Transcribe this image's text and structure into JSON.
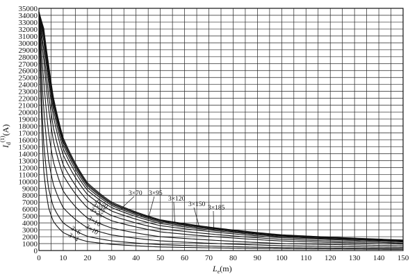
{
  "chart_data": {
    "type": "line",
    "xlabel_main": "L",
    "xlabel_sub": "e",
    "xlabel_unit": "(m)",
    "ylabel_main": "I",
    "ylabel_sub": "d",
    "ylabel_sup": "(1)",
    "ylabel_unit": "(A)",
    "xlim": [
      0,
      150
    ],
    "ylim": [
      0,
      35000
    ],
    "x_ticks": [
      0,
      10,
      20,
      30,
      40,
      50,
      60,
      70,
      80,
      90,
      100,
      110,
      120,
      130,
      140,
      150
    ],
    "y_ticks": [
      0,
      1000,
      2000,
      3000,
      4000,
      5000,
      6000,
      7000,
      8000,
      9000,
      10000,
      11000,
      12000,
      13000,
      14000,
      15000,
      16000,
      17000,
      18000,
      19000,
      20000,
      21000,
      22000,
      23000,
      24000,
      25000,
      26000,
      27000,
      28000,
      29000,
      30000,
      31000,
      32000,
      33000,
      34000,
      35000
    ],
    "grid": true,
    "series": [
      {
        "name": "3×4",
        "x": [
          0,
          2,
          4,
          6,
          10,
          20,
          30,
          50,
          100,
          150
        ],
        "y": [
          34500,
          11500,
          6200,
          4200,
          2600,
          1300,
          900,
          520,
          260,
          175
        ]
      },
      {
        "name": "3×6",
        "x": [
          0,
          2,
          4,
          6,
          10,
          20,
          30,
          50,
          100,
          150
        ],
        "y": [
          34500,
          15500,
          9000,
          6300,
          4000,
          2050,
          1400,
          850,
          430,
          290
        ]
      },
      {
        "name": "3×10",
        "x": [
          0,
          2,
          4,
          6,
          10,
          20,
          30,
          50,
          100,
          150
        ],
        "y": [
          34500,
          20500,
          13000,
          9500,
          6200,
          3300,
          2250,
          1400,
          700,
          470
        ]
      },
      {
        "name": "3×16",
        "x": [
          0,
          2,
          4,
          6,
          10,
          20,
          30,
          50,
          100,
          150
        ],
        "y": [
          34500,
          24500,
          17000,
          12800,
          8600,
          4700,
          3250,
          2000,
          1020,
          690
        ]
      },
      {
        "name": "3×25",
        "x": [
          0,
          2,
          4,
          6,
          10,
          20,
          30,
          50,
          100,
          150
        ],
        "y": [
          34500,
          27500,
          20500,
          15800,
          10900,
          6200,
          4300,
          2700,
          1380,
          930
        ]
      },
      {
        "name": "3×35",
        "x": [
          0,
          2,
          4,
          6,
          10,
          20,
          30,
          50,
          100,
          150
        ],
        "y": [
          34500,
          29000,
          22500,
          17700,
          12400,
          7200,
          5050,
          3150,
          1620,
          1090
        ]
      },
      {
        "name": "3×50",
        "x": [
          0,
          2,
          4,
          6,
          10,
          20,
          30,
          50,
          100,
          150
        ],
        "y": [
          34500,
          30300,
          24300,
          19300,
          13800,
          8100,
          5700,
          3600,
          1850,
          1250
        ]
      },
      {
        "name": "3×70",
        "x": [
          0,
          2,
          4,
          6,
          10,
          20,
          30,
          50,
          100,
          150
        ],
        "y": [
          34500,
          31000,
          25200,
          20300,
          14700,
          8700,
          6200,
          3900,
          2000,
          1350
        ]
      },
      {
        "name": "3×95",
        "x": [
          0,
          2,
          4,
          6,
          10,
          20,
          30,
          50,
          100,
          150
        ],
        "y": [
          34500,
          31400,
          25900,
          21000,
          15300,
          9100,
          6500,
          4100,
          2100,
          1420
        ]
      },
      {
        "name": "3×120",
        "x": [
          0,
          2,
          4,
          6,
          10,
          20,
          30,
          50,
          100,
          150
        ],
        "y": [
          34500,
          31700,
          26300,
          21400,
          15700,
          9400,
          6700,
          4250,
          2180,
          1470
        ]
      },
      {
        "name": "3×150",
        "x": [
          0,
          2,
          4,
          6,
          10,
          20,
          30,
          50,
          100,
          150
        ],
        "y": [
          34500,
          31900,
          26600,
          21800,
          16000,
          9600,
          6850,
          4350,
          2230,
          1500
        ]
      },
      {
        "name": "3×185",
        "x": [
          0,
          2,
          4,
          6,
          10,
          20,
          30,
          50,
          100,
          150
        ],
        "y": [
          34500,
          32100,
          26900,
          22100,
          16300,
          9800,
          7000,
          4450,
          2280,
          1530
        ]
      }
    ]
  }
}
